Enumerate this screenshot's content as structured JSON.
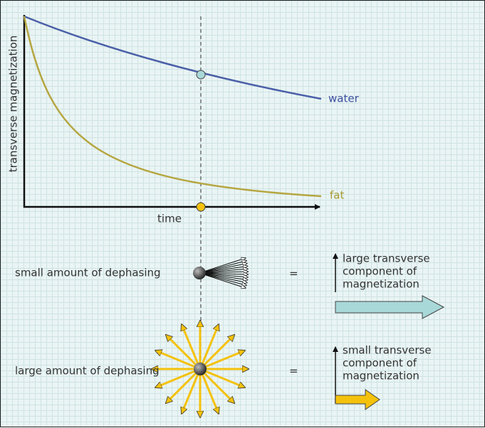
{
  "plot": {
    "y_axis_label": "transverse magnetization",
    "x_axis_label": "time",
    "curves": [
      {
        "label": "water"
      },
      {
        "label": "fat"
      }
    ]
  },
  "rows": [
    {
      "label": "small amount of dephasing",
      "equals": "=",
      "result": [
        "large transverse",
        "component of",
        "magnetization"
      ]
    },
    {
      "label": "large amount of dephasing",
      "equals": "=",
      "result": [
        "small transverse",
        "component of",
        "magnetization"
      ]
    }
  ]
}
